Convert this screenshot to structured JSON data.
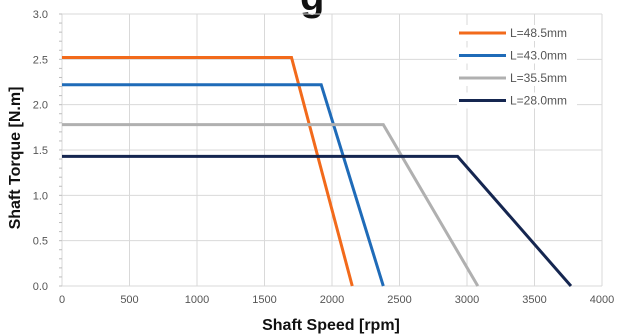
{
  "chart_data": {
    "type": "line",
    "title_fragment": "g",
    "xlabel": "Shaft Speed [rpm]",
    "ylabel": "Shaft Torque [N.m]",
    "xlim": [
      0,
      4000
    ],
    "ylim": [
      0,
      3.0
    ],
    "xticks": [
      "0",
      "500",
      "1000",
      "1500",
      "2000",
      "2500",
      "3000",
      "3500",
      "4000"
    ],
    "yticks": [
      "0.0",
      "0.5",
      "1.0",
      "1.5",
      "2.0",
      "2.5",
      "3.0"
    ],
    "grid": true,
    "legend_position": "top-right",
    "series": [
      {
        "name": "L=48.5mm",
        "color": "#f26a1b",
        "x": [
          0,
          1700,
          2150
        ],
        "y": [
          2.52,
          2.52,
          0.0
        ]
      },
      {
        "name": "L=43.0mm",
        "color": "#1f6bb8",
        "x": [
          0,
          1920,
          2380
        ],
        "y": [
          2.22,
          2.22,
          0.0
        ]
      },
      {
        "name": "L=35.5mm",
        "color": "#b0b0b0",
        "x": [
          0,
          2380,
          3080
        ],
        "y": [
          1.78,
          1.78,
          0.0
        ]
      },
      {
        "name": "L=28.0mm",
        "color": "#152650",
        "x": [
          0,
          2930,
          3770
        ],
        "y": [
          1.43,
          1.43,
          0.0
        ]
      }
    ]
  }
}
